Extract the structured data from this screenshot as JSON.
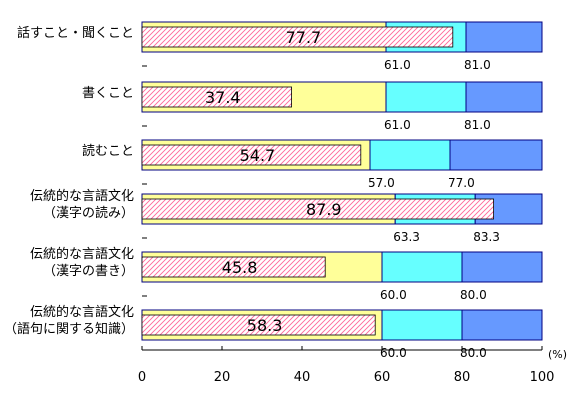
{
  "chart_data": {
    "type": "bar",
    "orientation": "horizontal",
    "stacked_range_bands": true,
    "unit": "(%)",
    "xlim": [
      0,
      100
    ],
    "xticks": [
      "0",
      "20",
      "40",
      "60",
      "80",
      "100"
    ],
    "categories": [
      [
        "話すこと・聞くこと"
      ],
      [
        "書くこと"
      ],
      [
        "読むこと"
      ],
      [
        "伝統的な言語文化",
        "（漢字の読み）"
      ],
      [
        "伝統的な言語文化",
        "（漢字の書き）"
      ],
      [
        "伝統的な言語文化",
        "（語句に関する知識）"
      ]
    ],
    "series": [
      {
        "values": [
          77.7,
          37.4,
          54.7,
          87.9,
          45.8,
          58.3
        ],
        "labels": [
          "77.7",
          "37.4",
          "54.7",
          "87.9",
          "45.8",
          "58.3"
        ]
      },
      {
        "values": [
          61.0,
          61.0,
          57.0,
          63.3,
          60.0,
          60.0
        ],
        "labels": [
          "61.0",
          "61.0",
          "57.0",
          "63.3",
          "60.0",
          "60.0"
        ]
      },
      {
        "values": [
          81.0,
          81.0,
          77.0,
          83.3,
          80.0,
          80.0
        ],
        "labels": [
          "81.0",
          "81.0",
          "77.0",
          "83.3",
          "80.0",
          "80.0"
        ]
      }
    ],
    "colors": {
      "band_low": "#ffff99",
      "band_mid": "#66ffff",
      "band_high": "#6699ff",
      "hatch_fill": "#ffffff",
      "hatch_line": "#ff6699",
      "border": "#000080"
    }
  }
}
